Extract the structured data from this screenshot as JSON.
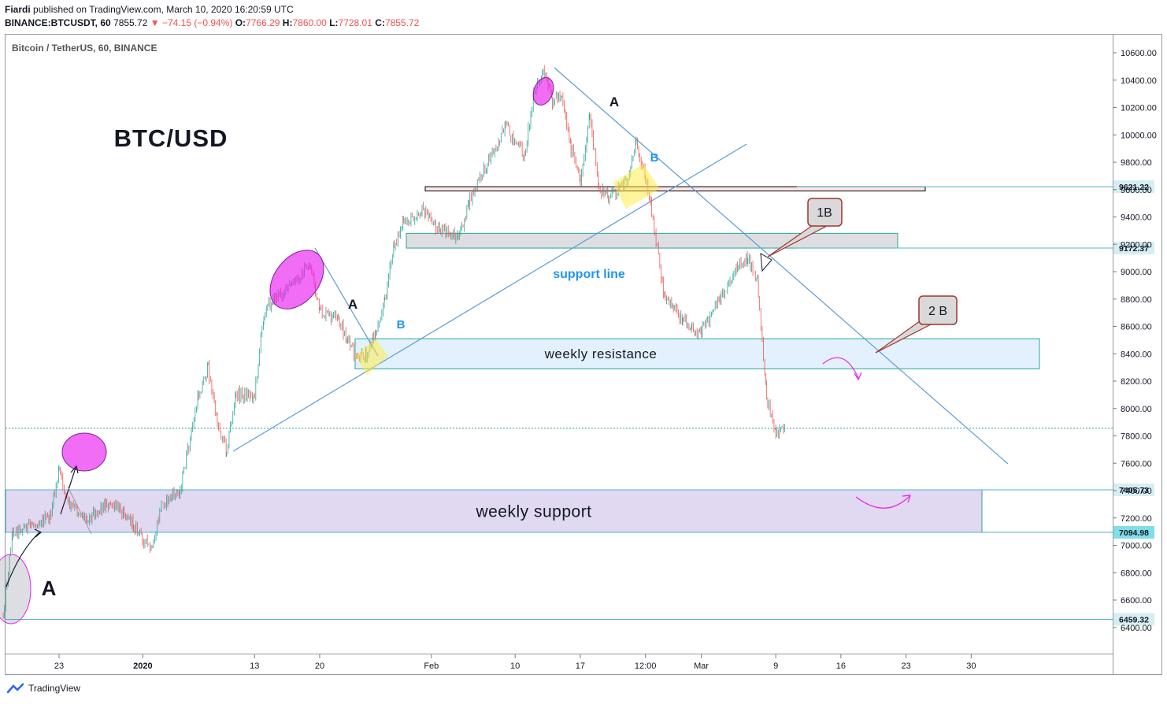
{
  "header": {
    "publisher": "Fiardi",
    "published_text": "published on TradingView.com, March 10, 2020 16:20:59 UTC",
    "symbol": "BINANCE:BTCUSDT, 60",
    "last": "7855.72",
    "change": "▼ −74.15 (−0.94%)",
    "o_label": "O:",
    "o": "7766.29",
    "h_label": "H:",
    "h": "7860.00",
    "l_label": "L:",
    "l": "7728.01",
    "c_label": "C:",
    "c": "7855.72"
  },
  "legend": {
    "series_title": "Bitcoin / TetherUS, 60, BINANCE"
  },
  "footer": {
    "brand": "TradingView"
  },
  "chart_data": {
    "type": "candlestick",
    "title": "Bitcoin / TetherUS, 60, BINANCE",
    "ylim": [
      6300,
      10750
    ],
    "y_ticks": [
      6400,
      6600,
      6800,
      7000,
      7200,
      7400,
      7600,
      7800,
      8000,
      8200,
      8400,
      8600,
      8800,
      9000,
      9200,
      9400,
      9600,
      9800,
      10000,
      10200,
      10400,
      10600
    ],
    "x_ticks": [
      {
        "label": "23",
        "date": "2019-12-23"
      },
      {
        "label": "2020",
        "date": "2020-01-01",
        "bold": true
      },
      {
        "label": "13",
        "date": "2020-01-13"
      },
      {
        "label": "20",
        "date": "2020-01-20"
      },
      {
        "label": "Feb",
        "date": "2020-02-01"
      },
      {
        "label": "10",
        "date": "2020-02-10"
      },
      {
        "label": "17",
        "date": "2020-02-17"
      },
      {
        "label": "12:00",
        "date": "2020-02-24"
      },
      {
        "label": "Mar",
        "date": "2020-03-01"
      },
      {
        "label": "9",
        "date": "2020-03-09"
      },
      {
        "label": "16",
        "date": "2020-03-16"
      },
      {
        "label": "23",
        "date": "2020-03-23"
      },
      {
        "label": "30",
        "date": "2020-03-30"
      }
    ],
    "price_path": [
      [
        "2019-12-17",
        6500
      ],
      [
        "2019-12-18",
        7100
      ],
      [
        "2019-12-20",
        7150
      ],
      [
        "2019-12-22",
        7200
      ],
      [
        "2019-12-23",
        7550
      ],
      [
        "2019-12-24",
        7300
      ],
      [
        "2019-12-26",
        7200
      ],
      [
        "2019-12-28",
        7300
      ],
      [
        "2019-12-30",
        7250
      ],
      [
        "2019-12-31",
        7150
      ],
      [
        "2020-01-02",
        6950
      ],
      [
        "2020-01-03",
        7300
      ],
      [
        "2020-01-05",
        7400
      ],
      [
        "2020-01-07",
        8100
      ],
      [
        "2020-01-08",
        8300
      ],
      [
        "2020-01-09",
        7900
      ],
      [
        "2020-01-10",
        7700
      ],
      [
        "2020-01-11",
        8100
      ],
      [
        "2020-01-13",
        8100
      ],
      [
        "2020-01-14",
        8700
      ],
      [
        "2020-01-15",
        8800
      ],
      [
        "2020-01-17",
        8900
      ],
      [
        "2020-01-19",
        9050
      ],
      [
        "2020-01-20",
        8700
      ],
      [
        "2020-01-22",
        8650
      ],
      [
        "2020-01-23",
        8500
      ],
      [
        "2020-01-24",
        8350
      ],
      [
        "2020-01-25",
        8400
      ],
      [
        "2020-01-26",
        8550
      ],
      [
        "2020-01-27",
        8800
      ],
      [
        "2020-01-28",
        9200
      ],
      [
        "2020-01-29",
        9350
      ],
      [
        "2020-01-31",
        9450
      ],
      [
        "2020-02-02",
        9300
      ],
      [
        "2020-02-04",
        9250
      ],
      [
        "2020-02-05",
        9500
      ],
      [
        "2020-02-07",
        9800
      ],
      [
        "2020-02-09",
        10050
      ],
      [
        "2020-02-11",
        9850
      ],
      [
        "2020-02-12",
        10300
      ],
      [
        "2020-02-13",
        10450
      ],
      [
        "2020-02-14",
        10250
      ],
      [
        "2020-02-15",
        10300
      ],
      [
        "2020-02-16",
        9900
      ],
      [
        "2020-02-17",
        9650
      ],
      [
        "2020-02-18",
        10150
      ],
      [
        "2020-02-19",
        9600
      ],
      [
        "2020-02-20",
        9550
      ],
      [
        "2020-02-22",
        9650
      ],
      [
        "2020-02-23",
        9950
      ],
      [
        "2020-02-24",
        9700
      ],
      [
        "2020-02-25",
        9300
      ],
      [
        "2020-02-26",
        8800
      ],
      [
        "2020-02-27",
        8750
      ],
      [
        "2020-02-28",
        8650
      ],
      [
        "2020-02-29",
        8600
      ],
      [
        "2020-03-01",
        8550
      ],
      [
        "2020-03-03",
        8800
      ],
      [
        "2020-03-05",
        9050
      ],
      [
        "2020-03-06",
        9100
      ],
      [
        "2020-03-07",
        8950
      ],
      [
        "2020-03-08",
        8100
      ],
      [
        "2020-03-09",
        7800
      ],
      [
        "2020-03-10",
        7856
      ]
    ],
    "horizontal_levels": [
      9621.22,
      9172.37,
      7405.73,
      7094.98,
      6459.32
    ],
    "last_price": 7855.72,
    "zones": [
      {
        "label": "weekly resistance",
        "from": 8290,
        "to": 8510
      },
      {
        "label": "weekly support",
        "from": 7094.98,
        "to": 7405.73
      },
      {
        "label": "",
        "from": 9172.37,
        "to": 9280
      },
      {
        "label": "",
        "from": 9590,
        "to": 9621.22
      }
    ],
    "annotations": [
      "BTC/USD",
      "A",
      "B",
      "A",
      "B",
      "A",
      "support line",
      "1B",
      "2 B"
    ]
  }
}
